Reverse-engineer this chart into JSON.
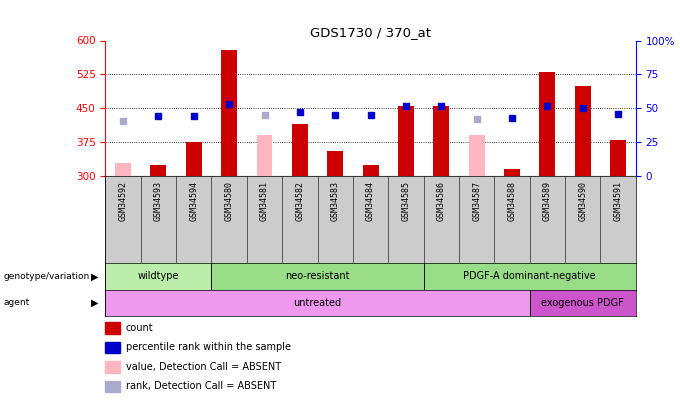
{
  "title": "GDS1730 / 370_at",
  "samples": [
    "GSM34592",
    "GSM34593",
    "GSM34594",
    "GSM34580",
    "GSM34581",
    "GSM34582",
    "GSM34583",
    "GSM34584",
    "GSM34585",
    "GSM34586",
    "GSM34587",
    "GSM34588",
    "GSM34589",
    "GSM34590",
    "GSM34591"
  ],
  "count_values": [
    null,
    325,
    375,
    580,
    null,
    415,
    355,
    325,
    455,
    455,
    null,
    315,
    530,
    500,
    380
  ],
  "count_absent": [
    330,
    null,
    null,
    null,
    390,
    null,
    null,
    null,
    null,
    null,
    390,
    null,
    null,
    null,
    null
  ],
  "percentile_rank": [
    null,
    44,
    44,
    53,
    null,
    47,
    45,
    45,
    52,
    52,
    null,
    43,
    52,
    50,
    46
  ],
  "percentile_absent": [
    41,
    null,
    null,
    null,
    45,
    null,
    null,
    null,
    null,
    null,
    42,
    null,
    null,
    null,
    null
  ],
  "ylim": [
    300,
    600
  ],
  "y_ticks_left": [
    300,
    375,
    450,
    525,
    600
  ],
  "y_ticks_right": [
    0,
    25,
    50,
    75,
    100
  ],
  "bar_color": "#cc0000",
  "absent_bar_color": "#ffb6c1",
  "dot_color": "#0000cc",
  "absent_dot_color": "#aaaacc",
  "bg_color": "#ffffff",
  "plot_bg": "#ffffff",
  "xticklabel_bg": "#cccccc",
  "geno_groups": [
    {
      "label": "wildtype",
      "start": 0,
      "end": 3,
      "color": "#bbeeaa"
    },
    {
      "label": "neo-resistant",
      "start": 3,
      "end": 9,
      "color": "#99dd88"
    },
    {
      "label": "PDGF-A dominant-negative",
      "start": 9,
      "end": 15,
      "color": "#99dd88"
    }
  ],
  "agent_groups": [
    {
      "label": "untreated",
      "start": 0,
      "end": 12,
      "color": "#ee99ee"
    },
    {
      "label": "exogenous PDGF",
      "start": 12,
      "end": 15,
      "color": "#cc55cc"
    }
  ],
  "legend_entries": [
    {
      "label": "count",
      "color": "#cc0000"
    },
    {
      "label": "percentile rank within the sample",
      "color": "#0000cc"
    },
    {
      "label": "value, Detection Call = ABSENT",
      "color": "#ffb6c1"
    },
    {
      "label": "rank, Detection Call = ABSENT",
      "color": "#aaaacc"
    }
  ]
}
